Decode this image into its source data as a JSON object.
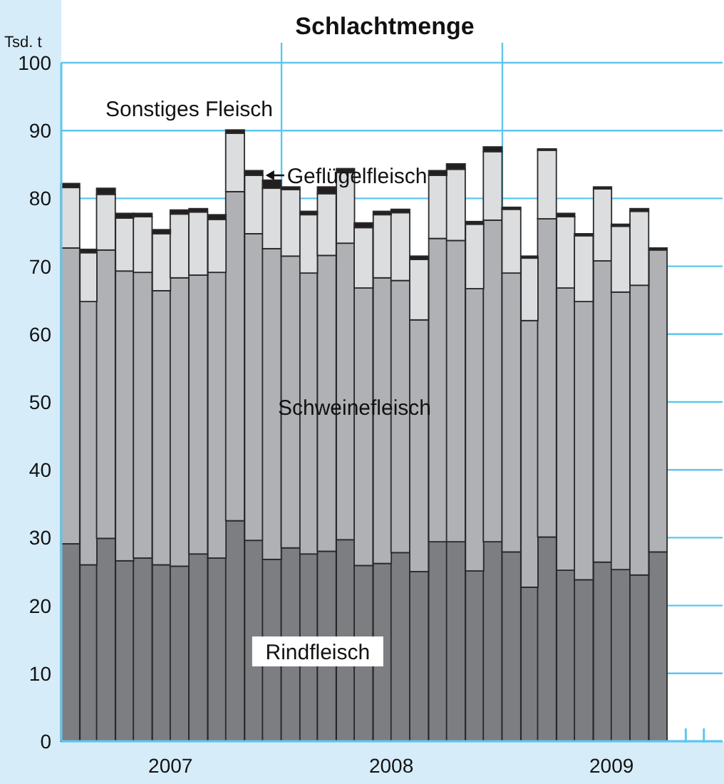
{
  "chart_data": {
    "type": "bar",
    "title": "Schlachtmenge",
    "ylabel": "Tsd. t",
    "stacked": true,
    "grid": "y",
    "x": [
      "2007-01-16",
      "2007-02-15",
      "2007-03-16",
      "2007-04-16",
      "2007-05-16",
      "2007-06-16",
      "2007-07-16",
      "2007-08-16",
      "2007-09-16",
      "2007-10-16",
      "2007-11-16",
      "2007-12-16",
      "2008-01-16",
      "2008-02-15",
      "2008-03-16",
      "2008-04-16",
      "2008-05-16",
      "2008-06-16",
      "2008-07-16",
      "2008-08-16",
      "2008-09-16",
      "2008-10-16",
      "2008-11-16",
      "2008-12-16",
      "2009-01-16",
      "2009-02-15",
      "2009-03-16",
      "2009-04-16",
      "2009-05-16",
      "2009-06-16",
      "2009-07-16",
      "2009-08-16",
      "2009-09-16"
    ],
    "xlim": [
      "2007-01-01",
      "2010-01-01"
    ],
    "xticks": [
      {
        "value": "2007-07-01",
        "label": "2007"
      },
      {
        "value": "2008-07-01",
        "label": "2008"
      },
      {
        "value": "2009-07-01",
        "label": "2009"
      },
      {
        "value": "2009-11-01",
        "label": null
      },
      {
        "value": "2009-12-01",
        "label": null
      }
    ],
    "ylim": [
      0,
      100
    ],
    "yticks": [
      0,
      10,
      20,
      30,
      40,
      50,
      60,
      70,
      80,
      90,
      100
    ],
    "ref_lines": [
      {
        "axis": "x",
        "value": "2008-01-01",
        "color": "#5fc6ee"
      },
      {
        "axis": "x",
        "value": "2009-01-01",
        "color": "#5fc6ee"
      }
    ],
    "series": [
      {
        "name": "Rindfleisch",
        "color": "#7d7e82",
        "values": [
          29.1,
          26.0,
          29.9,
          26.6,
          27.0,
          26.0,
          25.8,
          27.6,
          27.0,
          32.5,
          29.6,
          26.8,
          28.5,
          27.6,
          28.0,
          29.7,
          25.9,
          26.2,
          27.8,
          25.0,
          29.4,
          29.4,
          25.1,
          29.4,
          27.9,
          22.7,
          30.1,
          25.2,
          23.8,
          26.4,
          25.3,
          24.5,
          27.9
        ]
      },
      {
        "name": "Schweinefleisch",
        "color": "#b0b1b5",
        "values": [
          43.6,
          38.8,
          42.5,
          42.7,
          42.1,
          40.4,
          42.5,
          41.1,
          42.1,
          48.5,
          45.2,
          45.8,
          43.0,
          41.4,
          43.6,
          43.7,
          40.9,
          42.1,
          40.1,
          37.1,
          44.7,
          44.4,
          41.6,
          47.4,
          41.1,
          39.3,
          46.9,
          41.6,
          41.0,
          44.4,
          40.9,
          42.7,
          44.5
        ]
      },
      {
        "name": "Geflügelfleisch",
        "color": "#dcdddf",
        "values": [
          8.9,
          7.2,
          8.2,
          7.8,
          8.2,
          8.4,
          9.4,
          9.3,
          7.8,
          8.6,
          8.6,
          8.9,
          9.8,
          8.6,
          9.1,
          10.4,
          8.9,
          9.3,
          10.0,
          8.9,
          9.3,
          10.5,
          9.5,
          10.1,
          9.4,
          9.2,
          10.1,
          10.5,
          9.7,
          10.6,
          9.7,
          10.9,
          0
        ]
      },
      {
        "name": "Sonstiges Fleisch",
        "color": "#231f20",
        "values": [
          0.6,
          0.5,
          0.9,
          0.7,
          0.5,
          0.6,
          0.6,
          0.5,
          0.7,
          0.5,
          0.7,
          1.2,
          0.4,
          0.5,
          1.0,
          0.6,
          0.7,
          0.5,
          0.5,
          0.5,
          0.7,
          0.8,
          0.4,
          0.7,
          0.3,
          0.3,
          0.2,
          0.5,
          0.3,
          0.3,
          0.3,
          0.4,
          0.3
        ]
      }
    ]
  }
}
